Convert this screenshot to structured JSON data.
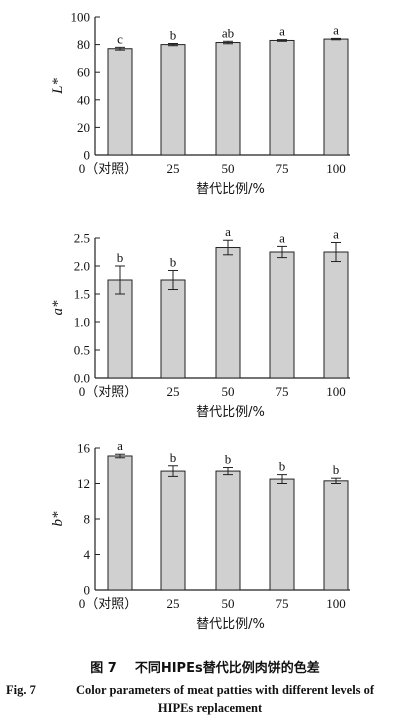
{
  "chart_data": [
    {
      "type": "bar",
      "ylabel": "L*",
      "xlabel": "替代比例/%",
      "categories": [
        "0（对照）",
        "25",
        "50",
        "75",
        "100"
      ],
      "values": [
        77,
        80,
        81.5,
        83,
        84
      ],
      "errors": [
        1,
        0.8,
        0.9,
        0.6,
        0.5
      ],
      "annotations": [
        "c",
        "b",
        "ab",
        "a",
        "a"
      ],
      "ylim": [
        0,
        100
      ],
      "yticks": [
        "0",
        "20",
        "40",
        "60",
        "80",
        "100"
      ]
    },
    {
      "type": "bar",
      "ylabel": "a*",
      "xlabel": "替代比例/%",
      "categories": [
        "0（对照）",
        "25",
        "50",
        "75",
        "100"
      ],
      "values": [
        1.75,
        1.75,
        2.33,
        2.25,
        2.25
      ],
      "errors": [
        0.25,
        0.17,
        0.13,
        0.1,
        0.17
      ],
      "annotations": [
        "b",
        "b",
        "a",
        "a",
        "a"
      ],
      "ylim": [
        0,
        2.5
      ],
      "yticks": [
        "0.0",
        "0.5",
        "1.0",
        "1.5",
        "2.0",
        "2.5"
      ]
    },
    {
      "type": "bar",
      "ylabel": "b*",
      "xlabel": "替代比例/%",
      "categories": [
        "0（对照）",
        "25",
        "50",
        "75",
        "100"
      ],
      "values": [
        15.1,
        13.4,
        13.4,
        12.5,
        12.3
      ],
      "errors": [
        0.2,
        0.6,
        0.4,
        0.5,
        0.3
      ],
      "annotations": [
        "a",
        "b",
        "b",
        "b",
        "b"
      ],
      "ylim": [
        0,
        16
      ],
      "yticks": [
        "0",
        "4",
        "8",
        "12",
        "16"
      ]
    }
  ],
  "caption": {
    "zh_fig": "图 7",
    "zh_text": "不同HIPEs替代比例肉饼的色差",
    "en_fig": "Fig. 7",
    "en_line1": "Color parameters of meat patties with different levels of",
    "en_line2": "HIPEs replacement"
  },
  "colors": {
    "bar": "#d0d0d0",
    "stroke": "#222222"
  }
}
